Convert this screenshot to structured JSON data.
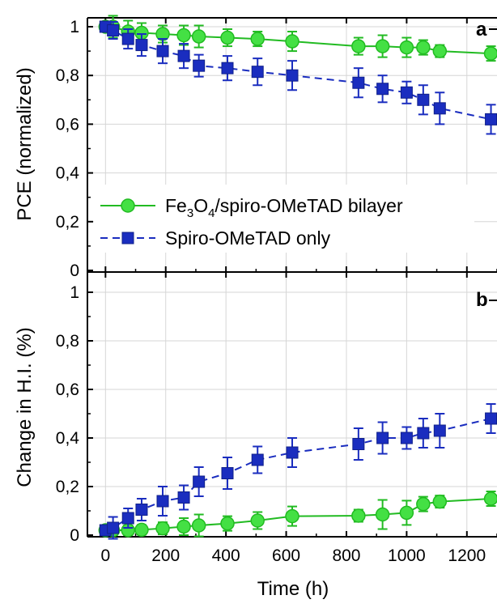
{
  "chart_data": [
    {
      "panel": "a",
      "type": "line",
      "ylabel": "PCE (normalized)",
      "xlabel": "",
      "xlim": [
        -60,
        1300
      ],
      "ylim": [
        0,
        1.05
      ],
      "x_ticks": [
        0,
        200,
        400,
        600,
        800,
        1000,
        1200
      ],
      "y_ticks": [
        0,
        0.2,
        0.4,
        0.6,
        0.8,
        1
      ],
      "y_tick_labels": [
        "0",
        "0,2",
        "0,4",
        "0,6",
        "0,8",
        "1"
      ],
      "grid": true,
      "legend_position": "bottom-left",
      "legend": [
        {
          "text": "Fe3O4/spiro-OMeTAD bilayer",
          "prefix": "Fe",
          "sub1": "3",
          "mid": "O",
          "sub2": "4",
          "suffix": "/spiro-OMeTAD bilayer"
        },
        {
          "text": "Spiro-OMeTAD only"
        }
      ],
      "series": [
        {
          "name": "Fe3O4/spiro-OMeTAD bilayer",
          "color": "#22bb22",
          "marker": "circle",
          "line": "solid",
          "x": [
            0,
            25,
            75,
            120,
            190,
            260,
            310,
            405,
            505,
            620,
            840,
            920,
            1000,
            1055,
            1110,
            1280
          ],
          "y": [
            1.0,
            1.0,
            0.98,
            0.975,
            0.97,
            0.965,
            0.96,
            0.955,
            0.95,
            0.94,
            0.92,
            0.92,
            0.915,
            0.915,
            0.9,
            0.89
          ],
          "err": [
            0.02,
            0.045,
            0.045,
            0.04,
            0.035,
            0.04,
            0.045,
            0.035,
            0.03,
            0.04,
            0.035,
            0.045,
            0.04,
            0.03,
            0.025,
            0.03
          ]
        },
        {
          "name": "Spiro-OMeTAD only",
          "color": "#1a2dbf",
          "marker": "square",
          "line": "dashed",
          "x": [
            0,
            25,
            75,
            120,
            190,
            260,
            310,
            405,
            505,
            620,
            840,
            920,
            1000,
            1055,
            1110,
            1280
          ],
          "y": [
            1.0,
            0.985,
            0.95,
            0.925,
            0.9,
            0.88,
            0.84,
            0.83,
            0.815,
            0.8,
            0.77,
            0.745,
            0.73,
            0.7,
            0.665,
            0.62
          ],
          "err": [
            0.02,
            0.035,
            0.04,
            0.045,
            0.05,
            0.05,
            0.045,
            0.05,
            0.055,
            0.06,
            0.06,
            0.055,
            0.045,
            0.06,
            0.065,
            0.06
          ]
        }
      ]
    },
    {
      "panel": "b",
      "type": "line",
      "ylabel": "Change in H.I. (%)",
      "xlabel": "Time (h)",
      "xlim": [
        -60,
        1300
      ],
      "ylim": [
        0,
        1.05
      ],
      "x_ticks": [
        0,
        200,
        400,
        600,
        800,
        1000,
        1200
      ],
      "x_tick_labels": [
        "0",
        "200",
        "400",
        "600",
        "800",
        "1000",
        "1200"
      ],
      "y_ticks": [
        0,
        0.2,
        0.4,
        0.6,
        0.8,
        1
      ],
      "y_tick_labels": [
        "0",
        "0,2",
        "0,4",
        "0,6",
        "0,8",
        "1"
      ],
      "grid": true,
      "series": [
        {
          "name": "Fe3O4/spiro-OMeTAD bilayer",
          "color": "#22bb22",
          "marker": "circle",
          "line": "solid",
          "x": [
            0,
            25,
            75,
            120,
            190,
            260,
            310,
            405,
            505,
            620,
            840,
            920,
            1000,
            1055,
            1110,
            1280
          ],
          "y": [
            0.02,
            0.02,
            0.02,
            0.022,
            0.028,
            0.035,
            0.04,
            0.048,
            0.06,
            0.078,
            0.08,
            0.085,
            0.092,
            0.128,
            0.138,
            0.15
          ],
          "err": [
            0.02,
            0.02,
            0.02,
            0.02,
            0.025,
            0.035,
            0.045,
            0.03,
            0.035,
            0.04,
            0.025,
            0.06,
            0.05,
            0.03,
            0.025,
            0.03
          ]
        },
        {
          "name": "Spiro-OMeTAD only",
          "color": "#1a2dbf",
          "marker": "square",
          "line": "dashed",
          "x": [
            0,
            25,
            75,
            120,
            190,
            260,
            310,
            405,
            505,
            620,
            840,
            920,
            1000,
            1055,
            1110,
            1280
          ],
          "y": [
            0.02,
            0.03,
            0.07,
            0.105,
            0.14,
            0.155,
            0.22,
            0.255,
            0.31,
            0.34,
            0.375,
            0.4,
            0.4,
            0.42,
            0.43,
            0.48
          ],
          "err": [
            0.02,
            0.045,
            0.04,
            0.045,
            0.06,
            0.05,
            0.06,
            0.065,
            0.055,
            0.06,
            0.065,
            0.065,
            0.045,
            0.06,
            0.07,
            0.06
          ]
        }
      ]
    }
  ]
}
